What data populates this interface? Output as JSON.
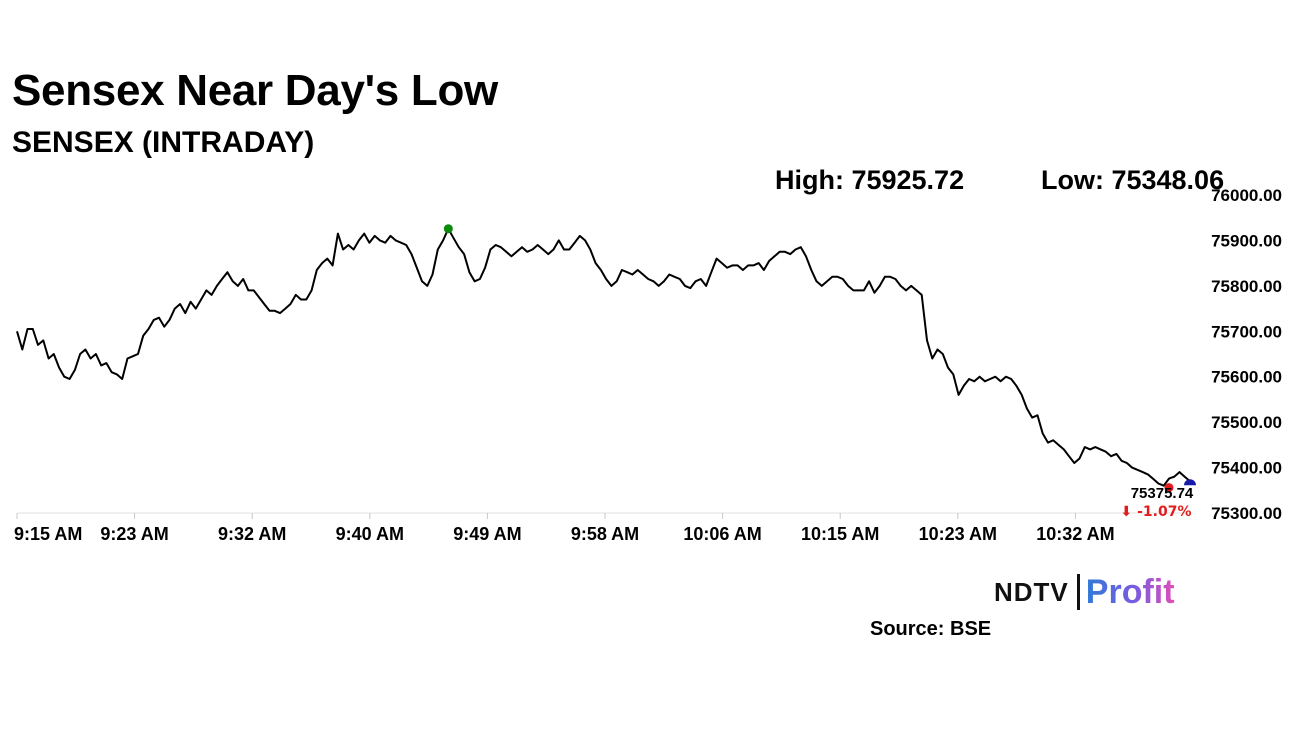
{
  "headline": "Sensex Near Day's Low",
  "stats": {
    "high": "High: 75925.72",
    "low": "Low: 75348.06"
  },
  "brand": {
    "ndtv": "NDTV",
    "profit": "Profit"
  },
  "source": "Source: BSE",
  "chart_data": {
    "type": "line",
    "title": "SENSEX (INTRADAY)",
    "xlabel": "",
    "ylabel": "",
    "ylim": [
      75300,
      76000
    ],
    "y_ticks": [
      "75300.00",
      "75400.00",
      "75500.00",
      "75600.00",
      "75700.00",
      "75800.00",
      "75900.00",
      "76000.00"
    ],
    "x_ticks": [
      "9:15 AM",
      "9:23 AM",
      "9:32 AM",
      "9:40 AM",
      "9:49 AM",
      "9:58 AM",
      "10:06 AM",
      "10:15 AM",
      "10:23 AM",
      "10:32 AM"
    ],
    "grid": false,
    "line_color": "#000000",
    "high_marker_color": "#0a8a0a",
    "last_marker_color": "#e11d1d",
    "end_marker_color": "#1a1aa8",
    "change_color": "#e11d1d",
    "last_value": "75375.74",
    "change": "⬇ -1.07%",
    "series": [
      {
        "values": [
          75700,
          75660,
          75705,
          75705,
          75670,
          75680,
          75640,
          75650,
          75620,
          75600,
          75595,
          75615,
          75650,
          75660,
          75640,
          75650,
          75625,
          75630,
          75610,
          75605,
          75595,
          75640,
          75645,
          75650,
          75690,
          75705,
          75725,
          75730,
          75710,
          75725,
          75750,
          75760,
          75740,
          75765,
          75750,
          75770,
          75790,
          75780,
          75800,
          75815,
          75830,
          75810,
          75800,
          75815,
          75790,
          75790,
          75775,
          75760,
          75745,
          75745,
          75740,
          75750,
          75760,
          75780,
          75770,
          75770,
          75790,
          75835,
          75850,
          75860,
          75845,
          75915,
          75880,
          75890,
          75880,
          75900,
          75915,
          75895,
          75910,
          75900,
          75895,
          75910,
          75900,
          75895,
          75890,
          75870,
          75840,
          75810,
          75800,
          75825,
          75880,
          75900,
          75925.72,
          75905,
          75885,
          75870,
          75830,
          75810,
          75815,
          75840,
          75880,
          75890,
          75885,
          75875,
          75865,
          75875,
          75885,
          75875,
          75880,
          75890,
          75880,
          75870,
          75880,
          75900,
          75880,
          75880,
          75895,
          75910,
          75900,
          75880,
          75850,
          75835,
          75815,
          75800,
          75810,
          75835,
          75830,
          75825,
          75835,
          75825,
          75815,
          75810,
          75800,
          75810,
          75825,
          75820,
          75815,
          75800,
          75795,
          75810,
          75815,
          75800,
          75830,
          75860,
          75850,
          75840,
          75845,
          75845,
          75835,
          75845,
          75845,
          75850,
          75835,
          75855,
          75865,
          75875,
          75875,
          75870,
          75880,
          75885,
          75865,
          75835,
          75810,
          75800,
          75810,
          75820,
          75820,
          75815,
          75800,
          75790,
          75790,
          75790,
          75810,
          75785,
          75800,
          75820,
          75820,
          75815,
          75800,
          75790,
          75800,
          75790,
          75780,
          75680,
          75640,
          75660,
          75650,
          75620,
          75605,
          75560,
          75580,
          75595,
          75590,
          75600,
          75590,
          75595,
          75600,
          75590,
          75600,
          75595,
          75580,
          75560,
          75530,
          75510,
          75515,
          75475,
          75455,
          75460,
          75450,
          75440,
          75425,
          75410,
          75420,
          75445,
          75440,
          75445,
          75440,
          75435,
          75425,
          75430,
          75415,
          75410,
          75400,
          75395,
          75390,
          75385,
          75375,
          75365,
          75360,
          75375.74,
          75380,
          75390,
          75380,
          75370
        ]
      }
    ]
  }
}
